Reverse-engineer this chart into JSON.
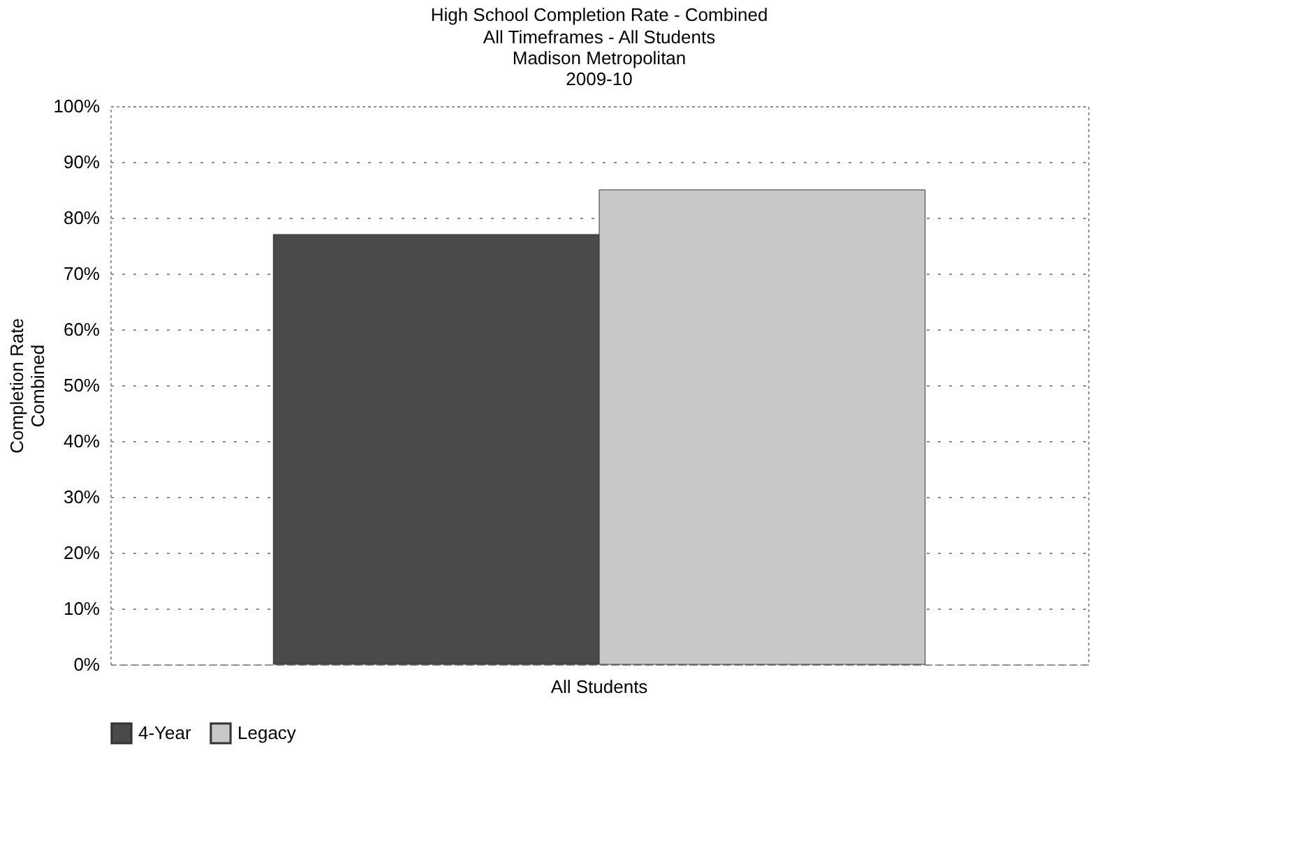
{
  "chart_data": {
    "type": "bar",
    "title": "High School Completion Rate - Combined",
    "subtitle": [
      "All Timeframes - All Students",
      "Madison Metropolitan",
      "2009-10"
    ],
    "categories": [
      "All Students"
    ],
    "ylabel": "Completion Rate\nCombined",
    "series": [
      {
        "name": "4-Year",
        "color": "#4a4a4a",
        "values": [
          77
        ]
      },
      {
        "name": "Legacy",
        "color": "#c8c8c8",
        "values": [
          85
        ]
      }
    ],
    "ylim": [
      0,
      100
    ],
    "yticks": [
      {
        "value": 0,
        "label": "0%"
      },
      {
        "value": 10,
        "label": "10%"
      },
      {
        "value": 20,
        "label": "20%"
      },
      {
        "value": 30,
        "label": "30%"
      },
      {
        "value": 40,
        "label": "40%"
      },
      {
        "value": 50,
        "label": "50%"
      },
      {
        "value": 60,
        "label": "60%"
      },
      {
        "value": 70,
        "label": "70%"
      },
      {
        "value": 80,
        "label": "80%"
      },
      {
        "value": 90,
        "label": "90%"
      },
      {
        "value": 100,
        "label": "100%"
      }
    ],
    "grid": "y",
    "legend": "bottom"
  }
}
